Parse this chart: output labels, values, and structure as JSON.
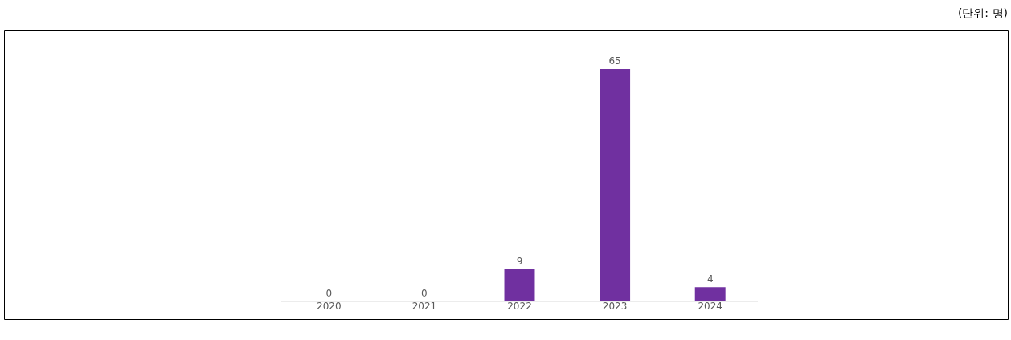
{
  "chart_data": {
    "type": "bar",
    "categories": [
      "2020",
      "2021",
      "2022",
      "2023",
      "2024"
    ],
    "values": [
      0,
      0,
      9,
      65,
      4
    ],
    "color": "#7030a0",
    "data_labels": true,
    "annotations": [
      "(단위: 명)"
    ]
  }
}
